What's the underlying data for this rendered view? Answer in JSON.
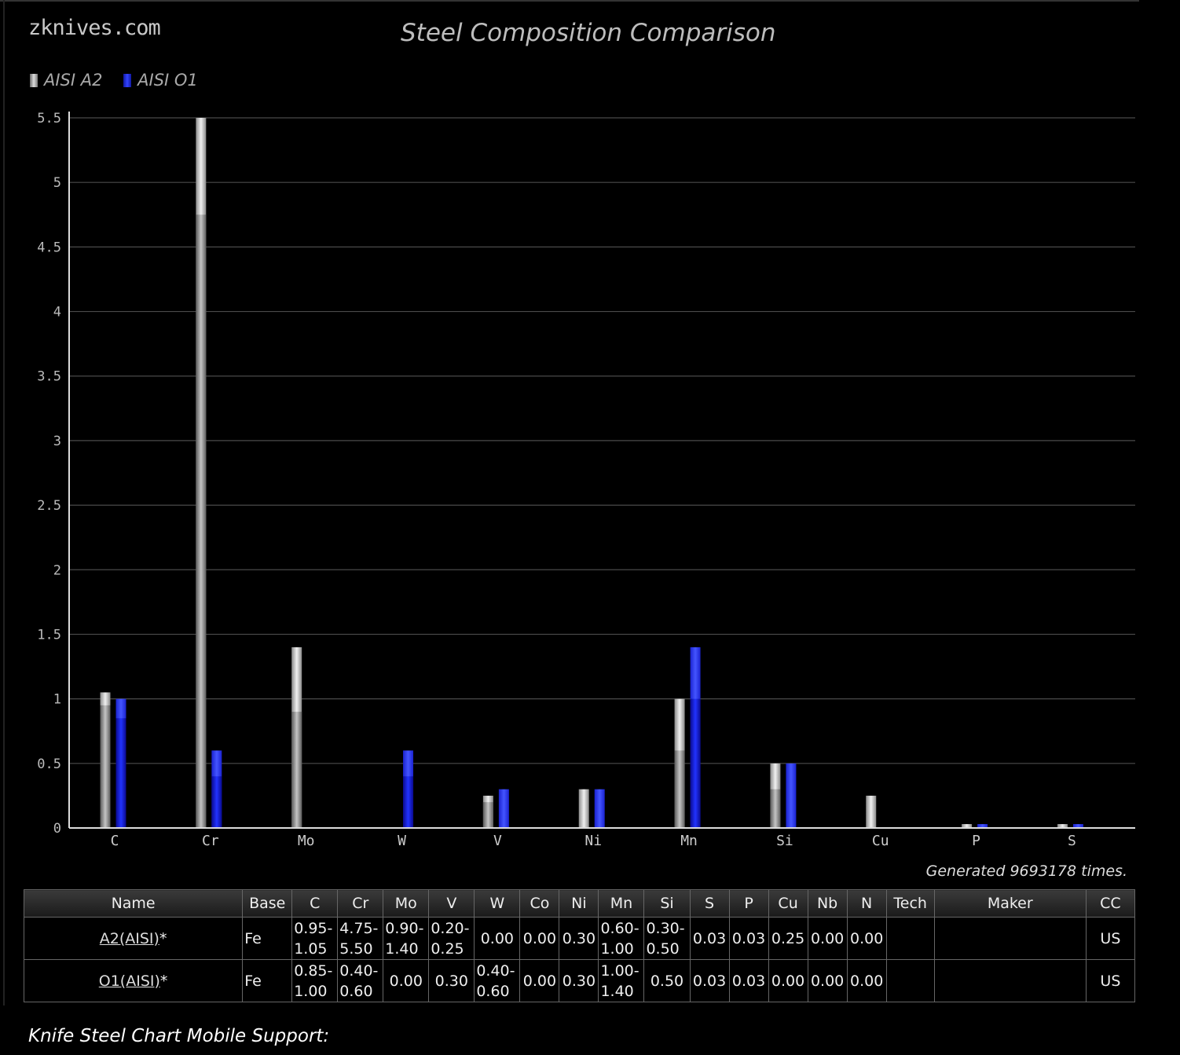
{
  "site": {
    "logo": "zknives.com"
  },
  "chart_data": {
    "type": "bar",
    "title": "Steel Composition Comparison",
    "categories": [
      "C",
      "Cr",
      "Mo",
      "W",
      "V",
      "Ni",
      "Mn",
      "Si",
      "Cu",
      "P",
      "S"
    ],
    "series": [
      {
        "name": "AISI A2",
        "min": [
          0.95,
          4.75,
          0.9,
          0,
          0.2,
          0,
          0.6,
          0.3,
          0,
          0,
          0
        ],
        "max": [
          1.05,
          5.5,
          1.4,
          0,
          0.25,
          0.3,
          1.0,
          0.5,
          0.25,
          0.03,
          0.03
        ]
      },
      {
        "name": "AISI O1",
        "min": [
          0.85,
          0.4,
          0,
          0.4,
          0,
          0,
          1.0,
          0,
          0,
          0,
          0
        ],
        "max": [
          1.0,
          0.6,
          0,
          0.6,
          0.3,
          0.3,
          1.4,
          0.5,
          0,
          0.03,
          0.03
        ]
      }
    ],
    "yticks": [
      "0",
      "0.5",
      "1",
      "1.5",
      "2",
      "2.5",
      "3",
      "3.5",
      "4",
      "4.5",
      "5",
      "5.5"
    ],
    "ylim": [
      0,
      5.5
    ],
    "grid": true,
    "legend": "top-left",
    "colors": {
      "AISI A2": "#b0b0b0",
      "AISI O1": "#2030ff"
    }
  },
  "generated_text": "Generated 9693178 times.",
  "table": {
    "headers": [
      "Name",
      "Base",
      "C",
      "Cr",
      "Mo",
      "V",
      "W",
      "Co",
      "Ni",
      "Mn",
      "Si",
      "S",
      "P",
      "Cu",
      "Nb",
      "N",
      "Tech",
      "Maker",
      "CC"
    ],
    "rows": [
      {
        "name": "A2(AISI)",
        "suffix": "*",
        "base": "Fe",
        "cells": [
          [
            "0.95-",
            "1.05"
          ],
          [
            "4.75-",
            "5.50"
          ],
          [
            "0.90-",
            "1.40"
          ],
          [
            "0.20-",
            "0.25"
          ],
          [
            "0.00"
          ],
          [
            "0.00"
          ],
          [
            "0.30"
          ],
          [
            "0.60-",
            "1.00"
          ],
          [
            "0.30-",
            "0.50"
          ],
          [
            "0.03"
          ],
          [
            "0.03"
          ],
          [
            "0.25"
          ],
          [
            "0.00"
          ],
          [
            "0.00"
          ]
        ],
        "tech": "",
        "maker": "",
        "cc": "US"
      },
      {
        "name": "O1(AISI)",
        "suffix": "*",
        "base": "Fe",
        "cells": [
          [
            "0.85-",
            "1.00"
          ],
          [
            "0.40-",
            "0.60"
          ],
          [
            "0.00"
          ],
          [
            "0.30"
          ],
          [
            "0.40-",
            "0.60"
          ],
          [
            "0.00"
          ],
          [
            "0.30"
          ],
          [
            "1.00-",
            "1.40"
          ],
          [
            "0.50"
          ],
          [
            "0.03"
          ],
          [
            "0.03"
          ],
          [
            "0.00"
          ],
          [
            "0.00"
          ],
          [
            "0.00"
          ]
        ],
        "tech": "",
        "maker": "",
        "cc": "US"
      }
    ]
  },
  "footer": {
    "note": "Knife Steel Chart Mobile Support:"
  }
}
